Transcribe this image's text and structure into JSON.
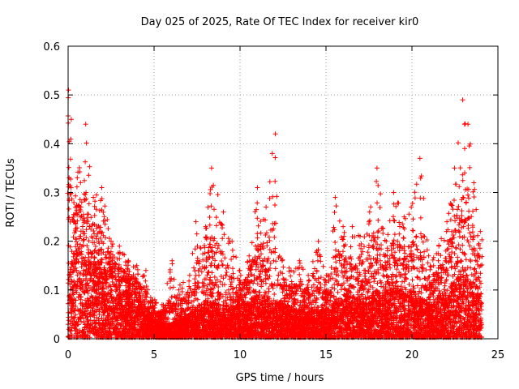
{
  "chart_data": {
    "type": "scatter",
    "title": "Day 025 of 2025, Rate Of TEC Index for receiver kir0",
    "xlabel": "GPS time / hours",
    "ylabel": "ROTI / TECUs",
    "xlim": [
      0,
      25
    ],
    "ylim": [
      0,
      0.6
    ],
    "x_ticks": [
      "0",
      "5",
      "10",
      "15",
      "20",
      "25"
    ],
    "y_ticks": [
      "0",
      "0.1",
      "0.2",
      "0.3",
      "0.4",
      "0.5",
      "0.6"
    ],
    "grid": true,
    "marker": "+",
    "color": "#ff0000",
    "envelope": [
      {
        "x": 0.0,
        "y": 0.51
      },
      {
        "x": 0.2,
        "y": 0.45
      },
      {
        "x": 0.5,
        "y": 0.33
      },
      {
        "x": 1.0,
        "y": 0.44
      },
      {
        "x": 1.5,
        "y": 0.29
      },
      {
        "x": 2.0,
        "y": 0.31
      },
      {
        "x": 2.5,
        "y": 0.2
      },
      {
        "x": 3.0,
        "y": 0.19
      },
      {
        "x": 3.5,
        "y": 0.16
      },
      {
        "x": 4.0,
        "y": 0.15
      },
      {
        "x": 4.5,
        "y": 0.14
      },
      {
        "x": 5.0,
        "y": 0.08
      },
      {
        "x": 5.5,
        "y": 0.07
      },
      {
        "x": 6.0,
        "y": 0.16
      },
      {
        "x": 6.5,
        "y": 0.11
      },
      {
        "x": 7.0,
        "y": 0.13
      },
      {
        "x": 7.5,
        "y": 0.24
      },
      {
        "x": 8.0,
        "y": 0.23
      },
      {
        "x": 8.3,
        "y": 0.35
      },
      {
        "x": 9.0,
        "y": 0.26
      },
      {
        "x": 9.5,
        "y": 0.2
      },
      {
        "x": 10.0,
        "y": 0.14
      },
      {
        "x": 10.5,
        "y": 0.17
      },
      {
        "x": 11.0,
        "y": 0.31
      },
      {
        "x": 11.5,
        "y": 0.27
      },
      {
        "x": 12.0,
        "y": 0.42
      },
      {
        "x": 12.5,
        "y": 0.16
      },
      {
        "x": 13.0,
        "y": 0.14
      },
      {
        "x": 13.5,
        "y": 0.16
      },
      {
        "x": 14.0,
        "y": 0.13
      },
      {
        "x": 14.5,
        "y": 0.2
      },
      {
        "x": 15.0,
        "y": 0.13
      },
      {
        "x": 15.5,
        "y": 0.29
      },
      {
        "x": 16.0,
        "y": 0.23
      },
      {
        "x": 16.5,
        "y": 0.23
      },
      {
        "x": 17.0,
        "y": 0.21
      },
      {
        "x": 17.5,
        "y": 0.26
      },
      {
        "x": 18.0,
        "y": 0.35
      },
      {
        "x": 18.5,
        "y": 0.2
      },
      {
        "x": 19.0,
        "y": 0.3
      },
      {
        "x": 19.5,
        "y": 0.25
      },
      {
        "x": 20.0,
        "y": 0.27
      },
      {
        "x": 20.5,
        "y": 0.37
      },
      {
        "x": 21.0,
        "y": 0.17
      },
      {
        "x": 21.5,
        "y": 0.19
      },
      {
        "x": 22.0,
        "y": 0.24
      },
      {
        "x": 22.5,
        "y": 0.35
      },
      {
        "x": 23.0,
        "y": 0.49
      },
      {
        "x": 23.3,
        "y": 0.44
      },
      {
        "x": 23.6,
        "y": 0.32
      },
      {
        "x": 24.0,
        "y": 0.22
      }
    ],
    "dense_level": [
      {
        "x": 0.0,
        "y": 0.14
      },
      {
        "x": 0.5,
        "y": 0.2
      },
      {
        "x": 1.0,
        "y": 0.17
      },
      {
        "x": 2.0,
        "y": 0.15
      },
      {
        "x": 3.0,
        "y": 0.1
      },
      {
        "x": 4.0,
        "y": 0.09
      },
      {
        "x": 5.0,
        "y": 0.04
      },
      {
        "x": 6.0,
        "y": 0.03
      },
      {
        "x": 7.0,
        "y": 0.05
      },
      {
        "x": 8.0,
        "y": 0.08
      },
      {
        "x": 9.0,
        "y": 0.07
      },
      {
        "x": 10.0,
        "y": 0.07
      },
      {
        "x": 11.0,
        "y": 0.09
      },
      {
        "x": 12.0,
        "y": 0.08
      },
      {
        "x": 13.0,
        "y": 0.06
      },
      {
        "x": 14.0,
        "y": 0.06
      },
      {
        "x": 15.0,
        "y": 0.06
      },
      {
        "x": 16.0,
        "y": 0.09
      },
      {
        "x": 17.0,
        "y": 0.08
      },
      {
        "x": 18.0,
        "y": 0.1
      },
      {
        "x": 19.0,
        "y": 0.1
      },
      {
        "x": 20.0,
        "y": 0.1
      },
      {
        "x": 21.0,
        "y": 0.07
      },
      {
        "x": 22.0,
        "y": 0.1
      },
      {
        "x": 23.0,
        "y": 0.14
      },
      {
        "x": 24.0,
        "y": 0.1
      }
    ]
  }
}
